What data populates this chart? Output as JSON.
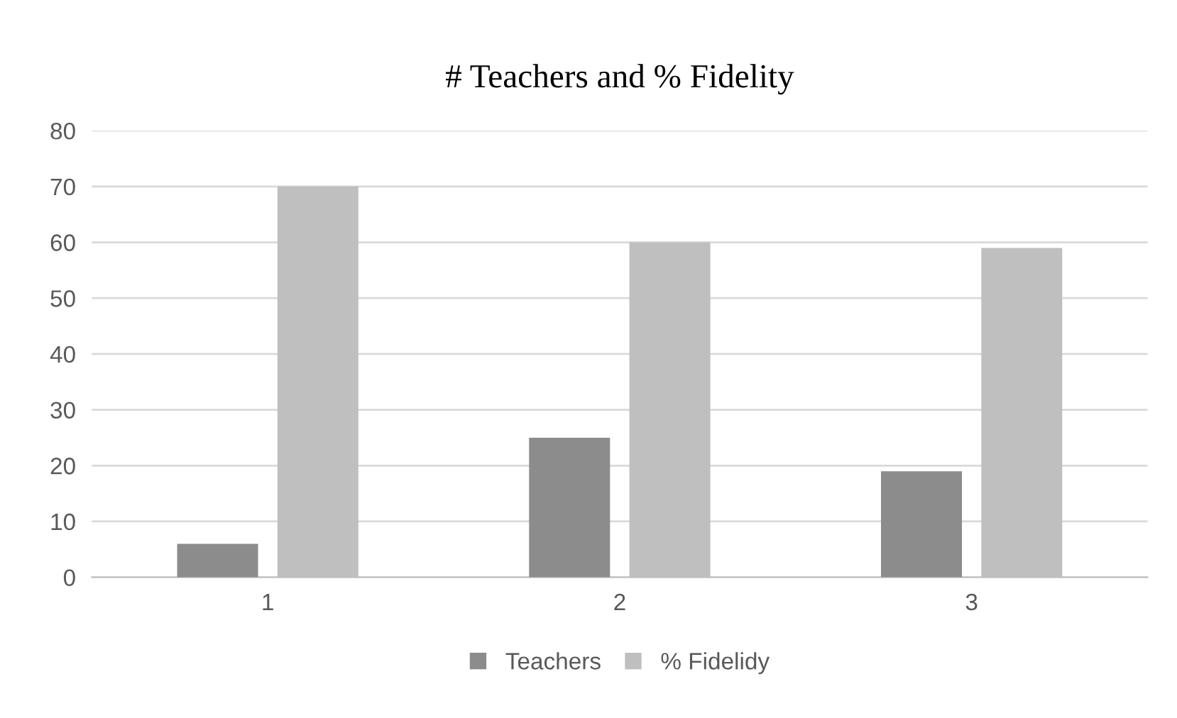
{
  "chart_data": {
    "type": "bar",
    "title": "# Teachers and % Fidelity",
    "categories": [
      "1",
      "2",
      "3"
    ],
    "series": [
      {
        "name": "Teachers",
        "color": "#8c8c8c",
        "values": [
          6,
          25,
          19
        ]
      },
      {
        "name": "% Fidelidy",
        "color": "#bfbfbf",
        "values": [
          70,
          60,
          59
        ]
      }
    ],
    "ylim": [
      0,
      80
    ],
    "yticks": [
      0,
      10,
      20,
      30,
      40,
      50,
      60,
      70,
      80
    ],
    "grid": "y",
    "legend": "bottom"
  }
}
